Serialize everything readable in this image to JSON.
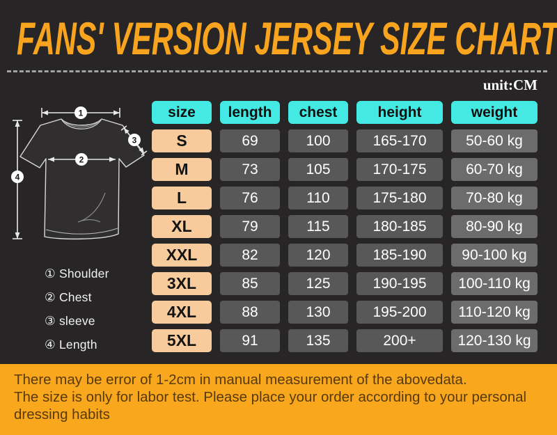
{
  "title": "FANS' VERSION JERSEY SIZE CHART",
  "unit_label": "unit:CM",
  "diagram": {
    "markers": [
      "1",
      "2",
      "3",
      "4"
    ],
    "legend": [
      {
        "marker": "①",
        "label": "Shoulder"
      },
      {
        "marker": "②",
        "label": "Chest"
      },
      {
        "marker": "③",
        "label": "sleeve"
      },
      {
        "marker": "④",
        "label": "Length"
      }
    ]
  },
  "chart_data": {
    "type": "table",
    "title": "FANS' VERSION JERSEY SIZE CHART",
    "unit": "CM",
    "columns": [
      "size",
      "length",
      "chest",
      "height",
      "weight"
    ],
    "rows": [
      [
        "S",
        "69",
        "100",
        "165-170",
        "50-60 kg"
      ],
      [
        "M",
        "73",
        "105",
        "170-175",
        "60-70 kg"
      ],
      [
        "L",
        "76",
        "110",
        "175-180",
        "70-80 kg"
      ],
      [
        "XL",
        "79",
        "115",
        "180-185",
        "80-90 kg"
      ],
      [
        "XXL",
        "82",
        "120",
        "185-190",
        "90-100 kg"
      ],
      [
        "3XL",
        "85",
        "125",
        "190-195",
        "100-110 kg"
      ],
      [
        "4XL",
        "88",
        "130",
        "195-200",
        "110-120 kg"
      ],
      [
        "5XL",
        "91",
        "135",
        "200+",
        "120-130 kg"
      ]
    ]
  },
  "footer": {
    "line1": "There may be error of 1-2cm in manual measurement of the abovedata.",
    "line2": "The size is only for labor test. Please place your order according to your personal dressing habits"
  },
  "colors": {
    "background": "#272525",
    "accent_orange": "#F8A41E",
    "footer_band": "#F9A71D",
    "header_cyan": "#43E9E2",
    "size_peach": "#F8CB9C",
    "cell_gray": "#585858",
    "cell_gray_light": "#6C6C6C"
  }
}
